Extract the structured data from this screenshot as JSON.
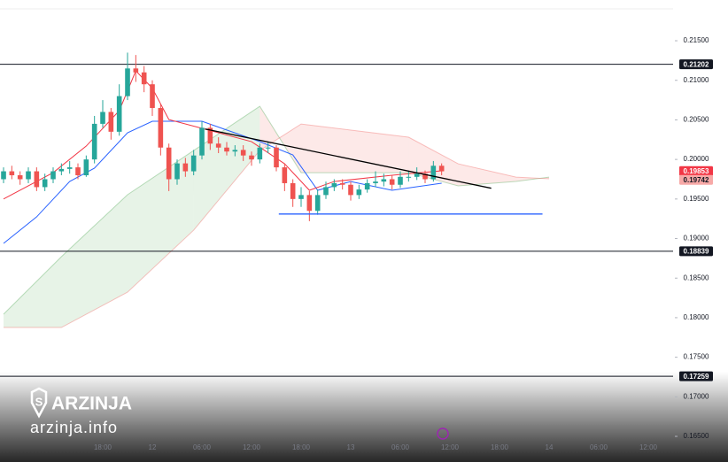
{
  "chart_data": {
    "type": "candlestick",
    "xlim": [
      -18.43,
      63
    ],
    "ylim": [
      0.16176,
      0.22015
    ],
    "xticks": [
      {
        "value": -6,
        "label": "18:00"
      },
      {
        "value": 0,
        "label": "12"
      },
      {
        "value": 6,
        "label": "06:00"
      },
      {
        "value": 12,
        "label": "12:00"
      },
      {
        "value": 18,
        "label": "18:00"
      },
      {
        "value": 24,
        "label": "13"
      },
      {
        "value": 30,
        "label": "06:00"
      },
      {
        "value": 36,
        "label": "12:00"
      },
      {
        "value": 42,
        "label": "18:00"
      },
      {
        "value": 48,
        "label": "14"
      },
      {
        "value": 54,
        "label": "06:00"
      },
      {
        "value": 60,
        "label": "12:00"
      }
    ],
    "yticks": [
      {
        "value": 0.165,
        "label": "0.16500"
      },
      {
        "value": 0.17,
        "label": "0.17000"
      },
      {
        "value": 0.175,
        "label": "0.17500"
      },
      {
        "value": 0.18,
        "label": "0.18000"
      },
      {
        "value": 0.185,
        "label": "0.18500"
      },
      {
        "value": 0.19,
        "label": "0.19000"
      },
      {
        "value": 0.195,
        "label": "0.19500"
      },
      {
        "value": 0.2,
        "label": "0.20000"
      },
      {
        "value": 0.205,
        "label": "0.20500"
      },
      {
        "value": 0.21,
        "label": "0.21000"
      },
      {
        "value": 0.215,
        "label": "0.21500"
      }
    ],
    "up_color": "#26a69a",
    "down_color": "#ef5350",
    "x": [
      -18,
      -17,
      -16,
      -15,
      -14,
      -13,
      -12,
      -11,
      -10,
      -9,
      -8,
      -7,
      -6,
      -5,
      -4,
      -3,
      -2,
      -1,
      0,
      1,
      2,
      3,
      4,
      5,
      6,
      7,
      8,
      9,
      10,
      11,
      12,
      13,
      14,
      15,
      16,
      17,
      18,
      19,
      20,
      21,
      22,
      23,
      24,
      25,
      26,
      27,
      28,
      29,
      30,
      31,
      32,
      33,
      34,
      35
    ],
    "open": [
      0.1975,
      0.1985,
      0.198,
      0.1975,
      0.1985,
      0.1965,
      0.1975,
      0.1985,
      0.1988,
      0.199,
      0.198,
      0.2,
      0.2045,
      0.206,
      0.2035,
      0.208,
      0.2115,
      0.211,
      0.2095,
      0.2065,
      0.2015,
      0.1975,
      0.1995,
      0.1985,
      0.2005,
      0.204,
      0.202,
      0.2015,
      0.201,
      0.2012,
      0.2005,
      0.2,
      0.2015,
      0.2015,
      0.199,
      0.197,
      0.195,
      0.1955,
      0.1935,
      0.1955,
      0.1965,
      0.197,
      0.1968,
      0.1955,
      0.1962,
      0.197,
      0.1972,
      0.1975,
      0.1968,
      0.1978,
      0.1978,
      0.1982,
      0.1975,
      0.1992
    ],
    "high": [
      0.199,
      0.1992,
      0.1985,
      0.199,
      0.199,
      0.1982,
      0.199,
      0.1995,
      0.1998,
      0.1995,
      0.2005,
      0.2055,
      0.2075,
      0.2065,
      0.2095,
      0.2135,
      0.2132,
      0.2118,
      0.21,
      0.207,
      0.202,
      0.2,
      0.2002,
      0.2012,
      0.2048,
      0.2045,
      0.2028,
      0.2022,
      0.2018,
      0.2018,
      0.201,
      0.202,
      0.2022,
      0.2018,
      0.1995,
      0.1975,
      0.1965,
      0.196,
      0.1962,
      0.1972,
      0.1975,
      0.1975,
      0.1972,
      0.1968,
      0.1975,
      0.1985,
      0.1982,
      0.198,
      0.1985,
      0.1985,
      0.199,
      0.1986,
      0.1998,
      0.1995
    ],
    "low": [
      0.197,
      0.1975,
      0.1968,
      0.197,
      0.196,
      0.196,
      0.197,
      0.198,
      0.1982,
      0.1975,
      0.1978,
      0.1995,
      0.204,
      0.2025,
      0.203,
      0.2075,
      0.2098,
      0.2085,
      0.2055,
      0.2005,
      0.196,
      0.1968,
      0.1978,
      0.198,
      0.2,
      0.2012,
      0.2008,
      0.2005,
      0.2004,
      0.1998,
      0.1992,
      0.1995,
      0.2008,
      0.1985,
      0.196,
      0.194,
      0.194,
      0.1922,
      0.193,
      0.195,
      0.196,
      0.1962,
      0.1948,
      0.195,
      0.1958,
      0.1965,
      0.1966,
      0.1962,
      0.1964,
      0.1972,
      0.1974,
      0.197,
      0.1972,
      0.198
    ],
    "close": [
      0.1985,
      0.198,
      0.1975,
      0.1985,
      0.1965,
      0.1975,
      0.1985,
      0.1988,
      0.199,
      0.198,
      0.2,
      0.2045,
      0.206,
      0.2035,
      0.208,
      0.2115,
      0.211,
      0.2095,
      0.2065,
      0.2015,
      0.1975,
      0.1995,
      0.1985,
      0.2005,
      0.204,
      0.202,
      0.2015,
      0.201,
      0.2012,
      0.2005,
      0.2,
      0.2015,
      0.2015,
      0.199,
      0.197,
      0.195,
      0.1955,
      0.1935,
      0.1955,
      0.1965,
      0.197,
      0.1968,
      0.1955,
      0.1962,
      0.197,
      0.1972,
      0.1975,
      0.1968,
      0.1978,
      0.1978,
      0.1982,
      0.1975,
      0.1992,
      0.1985
    ],
    "cloud": {
      "x": [
        -18,
        -11,
        -3,
        5,
        13,
        18,
        31,
        37,
        44,
        48
      ],
      "span_a": [
        0.18044,
        0.18771,
        0.19554,
        0.20113,
        0.20672,
        0.19833,
        0.19833,
        0.19666,
        0.19722,
        0.19777
      ],
      "span_b": [
        0.17876,
        0.17876,
        0.18323,
        0.19106,
        0.20113,
        0.20448,
        0.20281,
        0.19945,
        0.19777,
        0.19755
      ],
      "up_color": "#43a047",
      "down_color": "#ef5350"
    },
    "lines": [
      {
        "color": "#2962ff",
        "x": [
          -18,
          -14,
          -10,
          -7,
          -3,
          0,
          6,
          13,
          17,
          20,
          24,
          29,
          35
        ],
        "values": [
          0.18939,
          0.19274,
          0.19721,
          0.1989,
          0.20337,
          0.20482,
          0.20482,
          0.20225,
          0.20057,
          0.1961,
          0.19721,
          0.1961,
          0.19699
        ]
      },
      {
        "color": "#f23645",
        "x": [
          -18,
          -12,
          -8,
          -4,
          -2,
          0,
          2,
          6,
          12,
          16,
          19,
          22,
          29,
          35
        ],
        "values": [
          0.195,
          0.19833,
          0.20169,
          0.20616,
          0.2112,
          0.209,
          0.20504,
          0.20393,
          0.20225,
          0.19945,
          0.1961,
          0.19721,
          0.198,
          0.19856
        ]
      }
    ],
    "trendlines": [
      {
        "color": "#000000",
        "x": [
          6.4,
          41
        ],
        "values": [
          0.20385,
          0.19636
        ]
      },
      {
        "color": "#2962ff",
        "x": [
          15.3,
          47.2
        ],
        "values": [
          0.1931,
          0.1931
        ]
      }
    ],
    "levels": [
      {
        "value": 0.21202,
        "label": "0.21202"
      },
      {
        "value": 0.18839,
        "label": "0.18839"
      },
      {
        "value": 0.17259,
        "label": "0.17259"
      }
    ],
    "price_labels": [
      {
        "value": 0.19853,
        "label": "0.19853",
        "color": "#f23645",
        "text_color": "#ffffff"
      },
      {
        "value": 0.19742,
        "label": "0.19742",
        "color": "#f7a9a7",
        "text_color": "#131722"
      }
    ],
    "watermark": {
      "brand": "ARZINJA",
      "site": "arzinja.info"
    }
  }
}
